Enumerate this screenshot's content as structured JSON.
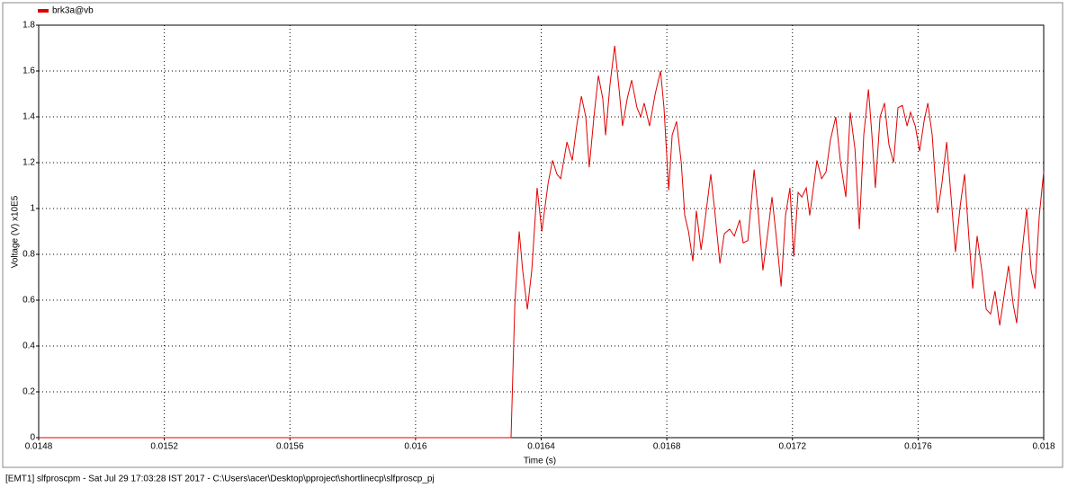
{
  "chart_data": {
    "type": "line",
    "xlabel": "Time (s)",
    "ylabel": "Voltage (V) x10E5",
    "footer": "[EMT1] slfproscpm - Sat Jul 29 17:03:28 IST 2017 - C:\\Users\\acer\\Desktop\\pproject\\shortlinecp\\slfproscp_pj",
    "xlim": [
      0.0148,
      0.018
    ],
    "ylim": [
      0,
      1.8
    ],
    "xticks": [
      0.0148,
      0.0152,
      0.0156,
      0.016,
      0.0164,
      0.0168,
      0.0172,
      0.0176,
      0.018
    ],
    "yticks": [
      0,
      0.2,
      0.4,
      0.6,
      0.8,
      1,
      1.2,
      1.4,
      1.6,
      1.8
    ],
    "grid": true,
    "legend": "top-left",
    "x": [
      0.0148,
      0.016304,
      0.016316,
      0.01633,
      0.016341,
      0.016356,
      0.01637,
      0.016387,
      0.016402,
      0.016422,
      0.016436,
      0.01645,
      0.016462,
      0.016482,
      0.016499,
      0.016513,
      0.016528,
      0.016542,
      0.016553,
      0.016568,
      0.016582,
      0.016596,
      0.016605,
      0.016619,
      0.016634,
      0.016648,
      0.016659,
      0.016674,
      0.016688,
      0.016705,
      0.016717,
      0.016728,
      0.016745,
      0.016763,
      0.01678,
      0.016791,
      0.016806,
      0.016817,
      0.016831,
      0.016846,
      0.016857,
      0.016869,
      0.016883,
      0.016894,
      0.016909,
      0.01692,
      0.01694,
      0.016954,
      0.016969,
      0.016983,
      0.017,
      0.017015,
      0.017032,
      0.017043,
      0.017058,
      0.017078,
      0.017092,
      0.017106,
      0.017121,
      0.017135,
      0.017149,
      0.017164,
      0.017178,
      0.017192,
      0.017204,
      0.017218,
      0.01723,
      0.017244,
      0.017255,
      0.017278,
      0.017293,
      0.017307,
      0.017321,
      0.017338,
      0.017353,
      0.01737,
      0.017384,
      0.017399,
      0.017413,
      0.017427,
      0.017442,
      0.017453,
      0.017464,
      0.017479,
      0.017493,
      0.017507,
      0.017522,
      0.017536,
      0.01755,
      0.017565,
      0.017576,
      0.017591,
      0.017605,
      0.017619,
      0.017631,
      0.017645,
      0.017662,
      0.017676,
      0.017691,
      0.017705,
      0.017719,
      0.017734,
      0.017748,
      0.017762,
      0.017774,
      0.017788,
      0.017803,
      0.017817,
      0.017831,
      0.017845,
      0.01786,
      0.017874,
      0.017888,
      0.017903,
      0.017914,
      0.017931,
      0.017946,
      0.01796,
      0.017972,
      0.017986,
      0.018
    ],
    "series": [
      {
        "name": "brk3a@vb",
        "color": "#e00000",
        "values": [
          0,
          0,
          0.58,
          0.9,
          0.73,
          0.56,
          0.73,
          1.09,
          0.9,
          1.11,
          1.21,
          1.15,
          1.13,
          1.29,
          1.21,
          1.36,
          1.49,
          1.4,
          1.18,
          1.4,
          1.58,
          1.48,
          1.32,
          1.54,
          1.71,
          1.52,
          1.36,
          1.48,
          1.56,
          1.44,
          1.4,
          1.46,
          1.36,
          1.5,
          1.6,
          1.44,
          1.08,
          1.32,
          1.38,
          1.2,
          0.97,
          0.9,
          0.77,
          0.99,
          0.82,
          0.93,
          1.15,
          0.97,
          0.76,
          0.89,
          0.91,
          0.88,
          0.95,
          0.85,
          0.86,
          1.17,
          0.97,
          0.73,
          0.89,
          1.05,
          0.87,
          0.66,
          0.97,
          1.09,
          0.79,
          1.07,
          1.05,
          1.09,
          0.97,
          1.21,
          1.13,
          1.16,
          1.3,
          1.4,
          1.2,
          1.05,
          1.42,
          1.26,
          0.91,
          1.32,
          1.52,
          1.32,
          1.09,
          1.4,
          1.46,
          1.28,
          1.2,
          1.44,
          1.45,
          1.36,
          1.42,
          1.36,
          1.25,
          1.38,
          1.46,
          1.32,
          0.98,
          1.11,
          1.29,
          1.05,
          0.81,
          1.01,
          1.15,
          0.87,
          0.65,
          0.88,
          0.73,
          0.56,
          0.54,
          0.64,
          0.49,
          0.62,
          0.75,
          0.58,
          0.5,
          0.81,
          1,
          0.73,
          0.65,
          0.97,
          1.16
        ]
      }
    ]
  }
}
